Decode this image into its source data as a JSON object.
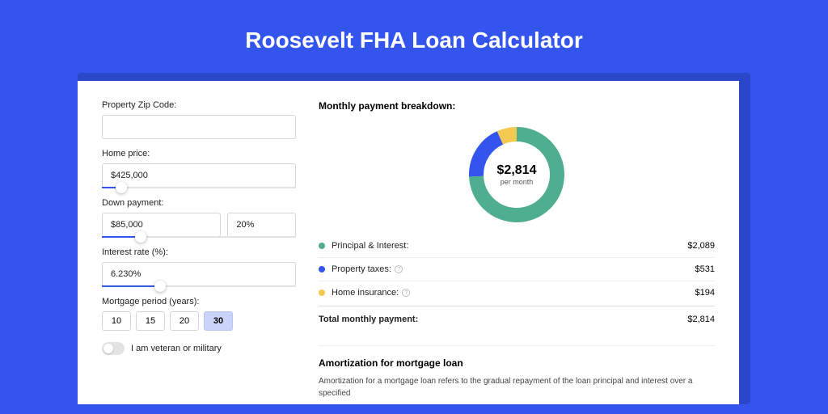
{
  "page": {
    "title": "Roosevelt FHA Loan Calculator",
    "colors": {
      "page_bg": "#3355ee",
      "shadow_bg": "#2b47c9",
      "card_bg": "#ffffff"
    }
  },
  "form": {
    "zip": {
      "label": "Property Zip Code:",
      "value": ""
    },
    "home_price": {
      "label": "Home price:",
      "value": "$425,000",
      "slider_pct": 10
    },
    "down_payment": {
      "label": "Down payment:",
      "amount": "$85,000",
      "pct": "20%",
      "slider_pct": 20
    },
    "interest": {
      "label": "Interest rate (%):",
      "value": "6.230%",
      "slider_pct": 30
    },
    "period": {
      "label": "Mortgage period (years):",
      "options": [
        "10",
        "15",
        "20",
        "30"
      ],
      "active_index": 3
    },
    "veteran": {
      "label": "I am veteran or military",
      "on": false
    }
  },
  "breakdown": {
    "title": "Monthly payment breakdown:",
    "donut": {
      "amount": "$2,814",
      "sub": "per month",
      "slices": [
        {
          "key": "pi",
          "color": "#4fae8f",
          "pct": 74.2
        },
        {
          "key": "tax",
          "color": "#3355ee",
          "pct": 18.9
        },
        {
          "key": "ins",
          "color": "#f4c94f",
          "pct": 6.9
        }
      ],
      "stroke_width": 18,
      "radius": 50
    },
    "rows": [
      {
        "key": "pi",
        "color": "#4fae8f",
        "label": "Principal & Interest:",
        "info": false,
        "value": "$2,089"
      },
      {
        "key": "tax",
        "color": "#3355ee",
        "label": "Property taxes:",
        "info": true,
        "value": "$531"
      },
      {
        "key": "ins",
        "color": "#f4c94f",
        "label": "Home insurance:",
        "info": true,
        "value": "$194"
      }
    ],
    "total": {
      "label": "Total monthly payment:",
      "value": "$2,814"
    }
  },
  "amortization": {
    "title": "Amortization for mortgage loan",
    "text": "Amortization for a mortgage loan refers to the gradual repayment of the loan principal and interest over a specified"
  }
}
